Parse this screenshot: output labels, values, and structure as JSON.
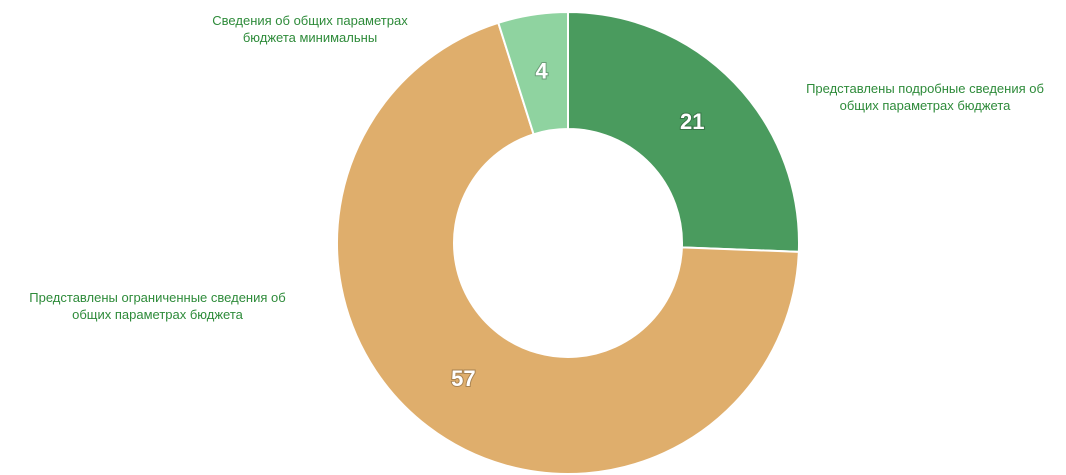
{
  "chart_data": {
    "type": "donut",
    "categories": [
      "Представлены подробные сведения об общих параметрах бюджета",
      "Представлены ограниченные сведения об общих параметрах бюджета",
      "Сведения об общих параметрах бюджета минимальны"
    ],
    "values": [
      21,
      57,
      4
    ],
    "colors": [
      "#4a9b5e",
      "#dfae6c",
      "#8fd3a0"
    ],
    "label_color": "#2e8b3a"
  }
}
